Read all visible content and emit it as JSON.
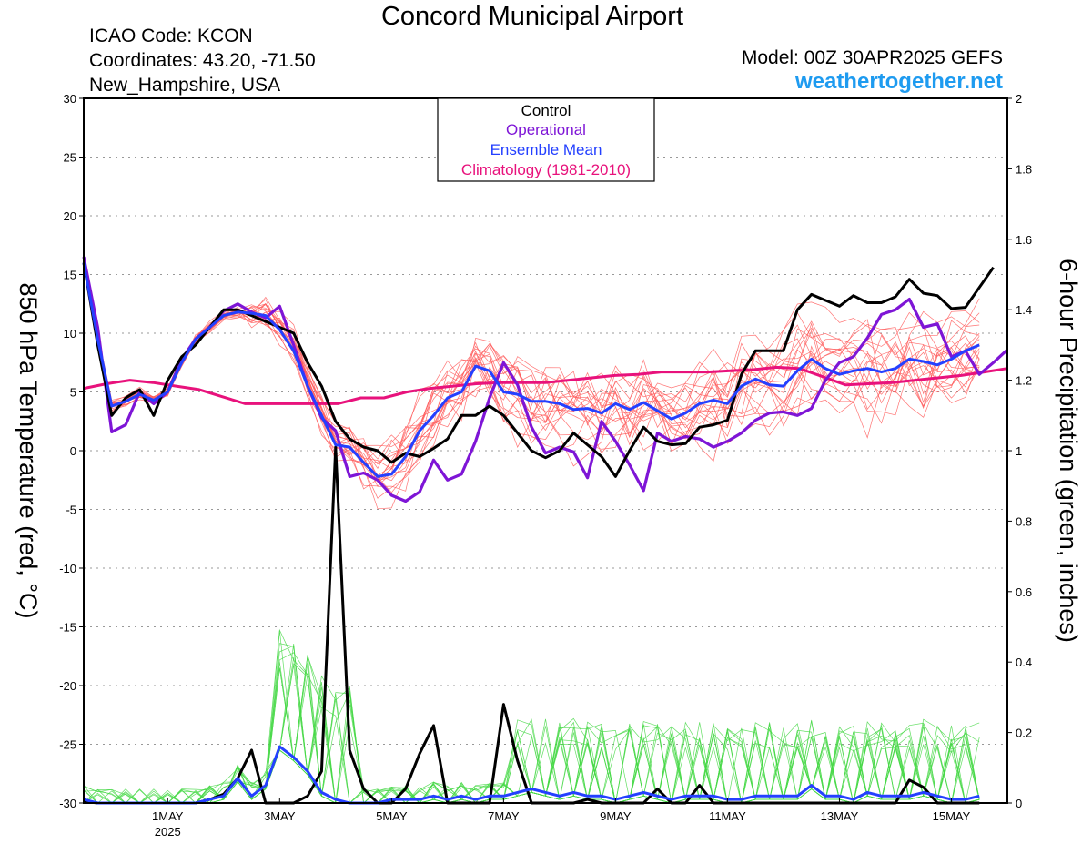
{
  "header": {
    "title": "Concord Municipal Airport",
    "icao": "ICAO Code: KCON",
    "coordinates": "Coordinates: 43.20, -71.50",
    "region": "New_Hampshire, USA",
    "model": "Model: 00Z 30APR2025 GEFS",
    "site": "weathertogether.net"
  },
  "chart_data": {
    "type": "line",
    "x_unit": "6-hour steps from 00Z 30APR2025",
    "xlim": [
      0,
      66
    ],
    "x_ticks": [
      {
        "x": 6,
        "label": "1MAY",
        "sublabel": "2025"
      },
      {
        "x": 14,
        "label": "3MAY"
      },
      {
        "x": 22,
        "label": "5MAY"
      },
      {
        "x": 30,
        "label": "7MAY"
      },
      {
        "x": 38,
        "label": "9MAY"
      },
      {
        "x": 46,
        "label": "11MAY"
      },
      {
        "x": 54,
        "label": "13MAY"
      },
      {
        "x": 62,
        "label": "15MAY"
      }
    ],
    "y_left": {
      "label": "850 hPa Temperature (red, °C)",
      "range": [
        -30,
        30
      ],
      "ticks": [
        "30",
        "25",
        "20",
        "15",
        "10",
        "5",
        "0",
        "-5",
        "-10",
        "-15",
        "-20",
        "-25",
        "-30"
      ]
    },
    "y_right": {
      "label": "6-hour Precipitation (green, inches)",
      "range": [
        0,
        2
      ],
      "ticks": [
        "2",
        "1.8",
        "1.6",
        "1.4",
        "1.2",
        "1",
        "0.8",
        "0.6",
        "0.4",
        "0.2",
        "0"
      ]
    },
    "grid": true,
    "legend": {
      "placement": "top-center",
      "entries": [
        {
          "name": "Control",
          "color": "#000000"
        },
        {
          "name": "Operational",
          "color": "#7e15d6"
        },
        {
          "name": "Ensemble Mean",
          "color": "#2440ff"
        },
        {
          "name": "Climatology (1981-2010)",
          "color": "#e8127c"
        }
      ]
    },
    "colors": {
      "members_temp": "#ff5a5a",
      "members_precip": "#46d846",
      "control": "#000000",
      "operational": "#7e15d6",
      "mean": "#2440ff",
      "climatology": "#e8127c"
    },
    "series": [
      {
        "name": "Control",
        "axis": "left",
        "values": [
          16,
          9,
          3,
          4.5,
          5.2,
          3,
          6,
          8,
          9,
          10.5,
          12,
          12,
          11.5,
          11,
          10.5,
          10,
          7.5,
          5.5,
          2.5,
          1,
          0.3,
          0,
          -1,
          -0.2,
          -0.5,
          0.2,
          1,
          3,
          3,
          3.8,
          3,
          1.5,
          0,
          -0.6,
          0,
          1.5,
          0.5,
          -0.5,
          -2.2,
          0,
          2,
          0.8,
          0.5,
          0.6,
          2,
          2.2,
          2.6,
          6.5,
          8.5,
          8.5,
          8.5,
          12,
          13.3,
          12.8,
          12.3,
          13.2,
          12.6,
          12.6,
          13.1,
          14.6,
          13.4,
          13.2,
          12.1,
          12.2,
          13.9,
          15.6
        ]
      },
      {
        "name": "Operational",
        "axis": "left",
        "values": [
          16.5,
          10.5,
          1.6,
          2.2,
          5,
          4,
          5,
          7.8,
          9.5,
          10.5,
          11.9,
          12.5,
          11.8,
          11.3,
          12.3,
          9,
          5.5,
          2.8,
          1.7,
          -2.2,
          -1.9,
          -2.5,
          -3.8,
          -4.3,
          -3.5,
          -0.8,
          -2.5,
          -2,
          0.8,
          4.5,
          7.5,
          5.6,
          2,
          -0.2,
          0.3,
          -0.1,
          -2.3,
          2.5,
          0.8,
          -1.2,
          -3.4,
          1.5,
          0.8,
          1.2,
          1,
          0.3,
          0.8,
          1.5,
          2.6,
          3.2,
          3.3,
          3,
          3.6,
          6,
          7.5,
          8,
          9.6,
          11.6,
          12,
          12.9,
          10.5,
          10.8,
          8,
          8.5,
          6.5,
          7.5,
          8.6
        ]
      },
      {
        "name": "Ensemble Mean",
        "axis": "left",
        "values": [
          16,
          9.5,
          3.8,
          4.2,
          4.8,
          4.3,
          5,
          7.5,
          9.5,
          10.5,
          11.5,
          11.8,
          11.7,
          11.5,
          10.3,
          8.5,
          5.5,
          3,
          0.5,
          0.3,
          -1,
          -2.2,
          -2,
          -0.5,
          1.7,
          3,
          4.5,
          5,
          7.2,
          6.8,
          5,
          4.8,
          4.2,
          4.2,
          4,
          3.5,
          3.6,
          3.2,
          4,
          3.5,
          4.1,
          3.4,
          2.7,
          3.2,
          4,
          4.3,
          4,
          5.5,
          6.1,
          5.6,
          5.5,
          6.8,
          7.8,
          7,
          6.5,
          6.8,
          7,
          6.7,
          7,
          7.8,
          7.6,
          7.3,
          7.8,
          8.5,
          9
        ]
      },
      {
        "name": "Climatology (1981-2010)",
        "axis": "left",
        "values": [
          5.3,
          5.7,
          6,
          5.8,
          5.5,
          5.2,
          4.6,
          4,
          4,
          4,
          4,
          4,
          4.5,
          4.5,
          5,
          5.3,
          5.5,
          5.7,
          5.8,
          5.8,
          5.8,
          6,
          6.2,
          6.4,
          6.5,
          6.7,
          6.7,
          6.7,
          6.8,
          6.9,
          7.1,
          7,
          6.3,
          5.6,
          5.7,
          5.8,
          6,
          6.2,
          6.4,
          6.7,
          7
        ]
      },
      {
        "name": "Control",
        "axis": "right",
        "values": [
          0.005,
          0,
          0,
          0,
          0,
          0,
          0,
          0,
          0,
          0.01,
          0.025,
          0.07,
          0.15,
          0,
          0,
          0,
          0.02,
          0.09,
          1.01,
          0.15,
          0.04,
          0,
          0,
          0.04,
          0.14,
          0.22,
          0,
          0,
          0,
          0,
          0.28,
          0.12,
          0,
          0,
          0,
          0,
          0.01,
          0,
          0,
          0,
          0,
          0.04,
          0,
          0,
          0.05,
          0,
          0,
          0,
          0,
          0,
          0,
          0,
          0,
          0,
          0,
          0,
          0,
          0,
          0,
          0.065,
          0.045,
          0,
          0,
          0,
          0
        ]
      },
      {
        "name": "Ensemble Mean",
        "axis": "right",
        "values": [
          0.01,
          0,
          0,
          0,
          0,
          0,
          0,
          0,
          0,
          0.01,
          0.02,
          0.07,
          0.02,
          0.05,
          0.16,
          0.13,
          0.09,
          0.03,
          0.01,
          0,
          0,
          0,
          0.01,
          0.01,
          0.01,
          0.02,
          0.01,
          0.02,
          0.01,
          0.02,
          0.02,
          0.03,
          0.04,
          0.03,
          0.02,
          0.03,
          0.02,
          0.02,
          0.01,
          0.02,
          0.03,
          0.02,
          0.01,
          0.02,
          0.02,
          0.02,
          0.01,
          0.01,
          0.02,
          0.02,
          0.02,
          0.02,
          0.05,
          0.02,
          0.02,
          0.01,
          0.03,
          0.02,
          0.02,
          0.02,
          0.03,
          0.02,
          0.01,
          0.01,
          0.02
        ]
      }
    ]
  }
}
